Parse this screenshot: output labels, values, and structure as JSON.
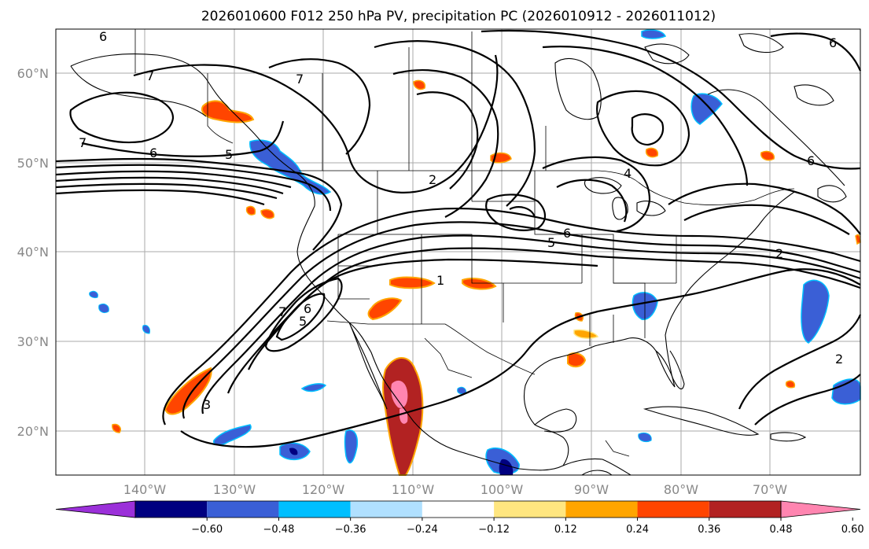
{
  "title": "2026010600 F012 250 hPa PV, precipitation PC (2026010912 - 2026011012)",
  "lat_labels": [
    "60°N",
    "50°N",
    "40°N",
    "30°N",
    "20°N"
  ],
  "lon_labels": [
    "140°W",
    "130°W",
    "120°W",
    "110°W",
    "100°W",
    "90°W",
    "80°W",
    "70°W"
  ],
  "colorbar": {
    "tick_labels": [
      "−0.60",
      "−0.48",
      "−0.36",
      "−0.24",
      "−0.12",
      "0.12",
      "0.24",
      "0.36",
      "0.48",
      "0.60"
    ],
    "colors": [
      "#9b30d9",
      "#000080",
      "#3a5fd6",
      "#00bfff",
      "#b0e0ff",
      "#ffffff",
      "#ffe680",
      "#ffa500",
      "#ff4500",
      "#b22222",
      "#ff85b0"
    ]
  },
  "contour_labels": [
    "6",
    "7",
    "7",
    "6",
    "5",
    "2",
    "7",
    "6",
    "5",
    "4",
    "6",
    "2",
    "2",
    "1",
    "7",
    "6",
    "5",
    "3",
    "6"
  ]
}
